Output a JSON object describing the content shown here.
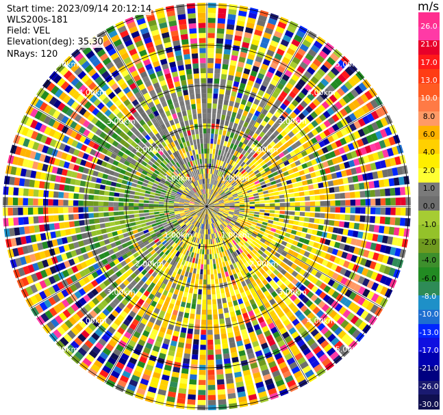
{
  "header": {
    "start_time": "Start time: 2023/09/14 20:12:14",
    "instrument": "WLS200s-181",
    "field": "Field: VEL",
    "elevation": "Elevation(deg): 35.30",
    "nrays": "NRays: 120"
  },
  "colorbar": {
    "unit": "m/s",
    "ticks": [
      "26.0",
      "21.0",
      "17.0",
      "13.0",
      "10.0",
      "8.0",
      "6.0",
      "4.0",
      "2.0",
      "1.0",
      "0.0",
      "-1.0",
      "-2.0",
      "-4.0",
      "-6.0",
      "-8.0",
      "-10.0",
      "-13.0",
      "-17.0",
      "-21.0",
      "-26.0",
      "-30.0"
    ],
    "colors": [
      "#ff2e8f",
      "#ff3aa6",
      "#e8002a",
      "#ff1a1a",
      "#ff3c14",
      "#ff5b22",
      "#ff7a45",
      "#ff9a66",
      "#ffb300",
      "#ffd000",
      "#ffee00",
      "#ffff33",
      "#7a7a7a",
      "#6e6e6e",
      "#a6cc33",
      "#94c22a",
      "#6f9a1f",
      "#3d8f2c",
      "#228b22",
      "#2e8b57",
      "#1e90c8",
      "#1e6fd0",
      "#0026ff",
      "#1010e0",
      "#0000b0",
      "#000080",
      "#1a1a70",
      "#101050"
    ]
  },
  "chart_data": {
    "type": "heatmap",
    "title": "",
    "projection": "polar PPI scan",
    "range_rings": [
      "1.00km",
      "2.00km",
      "3.00km",
      "4.00km",
      "5.00km"
    ],
    "color_scale_unit": "m/s",
    "color_scale_min": -30.0,
    "color_scale_max": 26.0,
    "n_rays": 120,
    "elevation_deg": 35.3,
    "field": "VEL"
  }
}
